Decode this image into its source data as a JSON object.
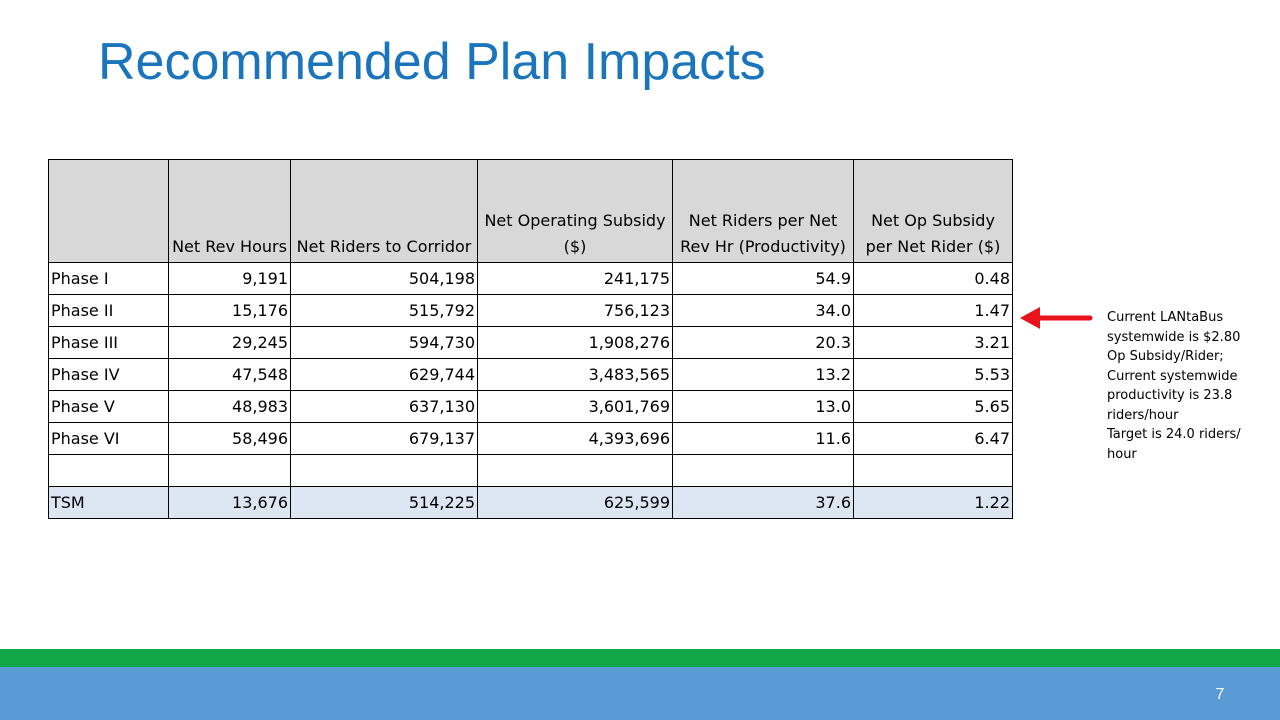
{
  "slide": {
    "title": "Recommended Plan Impacts",
    "number": "7"
  },
  "table": {
    "headers": [
      "",
      "Net Rev Hours",
      "Net Riders to Corridor",
      "Net Operating Subsidy ($)",
      "Net Riders per Net Rev Hr (Productivity)",
      "Net Op Subsidy per Net Rider ($)"
    ],
    "rows": [
      [
        "Phase I",
        "9,191",
        "504,198",
        "241,175",
        "54.9",
        "0.48"
      ],
      [
        "Phase II",
        "15,176",
        "515,792",
        "756,123",
        "34.0",
        "1.47"
      ],
      [
        "Phase III",
        "29,245",
        "594,730",
        "1,908,276",
        "20.3",
        "3.21"
      ],
      [
        "Phase IV",
        "47,548",
        "629,744",
        "3,483,565",
        "13.2",
        "5.53"
      ],
      [
        "Phase V",
        "48,983",
        "637,130",
        "3,601,769",
        "13.0",
        "5.65"
      ],
      [
        "Phase VI",
        "58,496",
        "679,137",
        "4,393,696",
        "11.6",
        "6.47"
      ],
      [
        "",
        "",
        "",
        "",
        "",
        ""
      ],
      [
        "TSM",
        "13,676",
        "514,225",
        "625,599",
        "37.6",
        "1.22"
      ]
    ]
  },
  "note": {
    "lines": [
      "Current LANtaBus",
      "systemwide is $2.80",
      "Op Subsidy/Rider;",
      "Current systemwide",
      "productivity is 23.8",
      "riders/hour",
      "Target is 24.0 riders/",
      "hour"
    ]
  },
  "colors": {
    "title": "#1a75bc",
    "header_fill": "#d8d8d8",
    "tsm_fill": "#dce6f2",
    "arrow": "#e8141b",
    "band_green": "#12a84a",
    "band_blue": "#5b9bd5"
  }
}
